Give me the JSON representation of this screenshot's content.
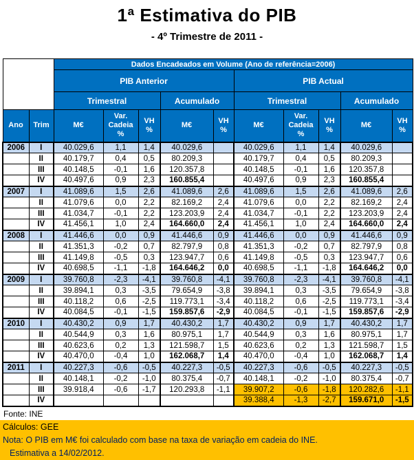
{
  "title": "1ª Estimativa do PIB",
  "subtitle": "- 4º Trimestre de 2011 -",
  "colors": {
    "header_blue": "#0070C0",
    "row_highlight_blue": "#C5D9F1",
    "estimate_highlight_orange": "#FFC000",
    "note_text_navy": "#002060"
  },
  "table": {
    "banner": "Dados Encadeados em Volume (Ano de referência=2006)",
    "groups": {
      "anterior": "PIB Anterior",
      "actual": "PIB Actual"
    },
    "subgroups": {
      "trimestral": "Trimestral",
      "acumulado": "Acumulado"
    },
    "columns": {
      "ano": "Ano",
      "trim": "Trim",
      "me": "M€",
      "var_cadeia": "Var. Cadeia %",
      "vh": "VH %"
    },
    "rows": [
      {
        "year": "2006",
        "quarter": "I",
        "ant": [
          "40.029,6",
          "1,1",
          "1,4",
          "40.029,6",
          ""
        ],
        "act": [
          "40.029,6",
          "1,1",
          "1,4",
          "40.029,6",
          ""
        ],
        "bold_acumulado": false,
        "orange_actual": false
      },
      {
        "year": "",
        "quarter": "II",
        "ant": [
          "40.179,7",
          "0,4",
          "0,5",
          "80.209,3",
          ""
        ],
        "act": [
          "40.179,7",
          "0,4",
          "0,5",
          "80.209,3",
          ""
        ],
        "bold_acumulado": false,
        "orange_actual": false
      },
      {
        "year": "",
        "quarter": "III",
        "ant": [
          "40.148,5",
          "-0,1",
          "1,6",
          "120.357,8",
          ""
        ],
        "act": [
          "40.148,5",
          "-0,1",
          "1,6",
          "120.357,8",
          ""
        ],
        "bold_acumulado": false,
        "orange_actual": false
      },
      {
        "year": "",
        "quarter": "IV",
        "ant": [
          "40.497,6",
          "0,9",
          "2,3",
          "160.855,4",
          ""
        ],
        "act": [
          "40.497,6",
          "0,9",
          "2,3",
          "160.855,4",
          ""
        ],
        "bold_acumulado": true,
        "orange_actual": false
      },
      {
        "year": "2007",
        "quarter": "I",
        "ant": [
          "41.089,6",
          "1,5",
          "2,6",
          "41.089,6",
          "2,6"
        ],
        "act": [
          "41.089,6",
          "1,5",
          "2,6",
          "41.089,6",
          "2,6"
        ],
        "bold_acumulado": false,
        "orange_actual": false
      },
      {
        "year": "",
        "quarter": "II",
        "ant": [
          "41.079,6",
          "0,0",
          "2,2",
          "82.169,2",
          "2,4"
        ],
        "act": [
          "41.079,6",
          "0,0",
          "2,2",
          "82.169,2",
          "2,4"
        ],
        "bold_acumulado": false,
        "orange_actual": false
      },
      {
        "year": "",
        "quarter": "III",
        "ant": [
          "41.034,7",
          "-0,1",
          "2,2",
          "123.203,9",
          "2,4"
        ],
        "act": [
          "41.034,7",
          "-0,1",
          "2,2",
          "123.203,9",
          "2,4"
        ],
        "bold_acumulado": false,
        "orange_actual": false
      },
      {
        "year": "",
        "quarter": "IV",
        "ant": [
          "41.456,1",
          "1,0",
          "2,4",
          "164.660,0",
          "2,4"
        ],
        "act": [
          "41.456,1",
          "1,0",
          "2,4",
          "164.660,0",
          "2,4"
        ],
        "bold_acumulado": true,
        "orange_actual": false
      },
      {
        "year": "2008",
        "quarter": "I",
        "ant": [
          "41.446,6",
          "0,0",
          "0,9",
          "41.446,6",
          "0,9"
        ],
        "act": [
          "41.446,6",
          "0,0",
          "0,9",
          "41.446,6",
          "0,9"
        ],
        "bold_acumulado": false,
        "orange_actual": false
      },
      {
        "year": "",
        "quarter": "II",
        "ant": [
          "41.351,3",
          "-0,2",
          "0,7",
          "82.797,9",
          "0,8"
        ],
        "act": [
          "41.351,3",
          "-0,2",
          "0,7",
          "82.797,9",
          "0,8"
        ],
        "bold_acumulado": false,
        "orange_actual": false
      },
      {
        "year": "",
        "quarter": "III",
        "ant": [
          "41.149,8",
          "-0,5",
          "0,3",
          "123.947,7",
          "0,6"
        ],
        "act": [
          "41.149,8",
          "-0,5",
          "0,3",
          "123.947,7",
          "0,6"
        ],
        "bold_acumulado": false,
        "orange_actual": false
      },
      {
        "year": "",
        "quarter": "IV",
        "ant": [
          "40.698,5",
          "-1,1",
          "-1,8",
          "164.646,2",
          "0,0"
        ],
        "act": [
          "40.698,5",
          "-1,1",
          "-1,8",
          "164.646,2",
          "0,0"
        ],
        "bold_acumulado": true,
        "orange_actual": false
      },
      {
        "year": "2009",
        "quarter": "I",
        "ant": [
          "39.760,8",
          "-2,3",
          "-4,1",
          "39.760,8",
          "-4,1"
        ],
        "act": [
          "39.760,8",
          "-2,3",
          "-4,1",
          "39.760,8",
          "-4,1"
        ],
        "bold_acumulado": false,
        "orange_actual": false
      },
      {
        "year": "",
        "quarter": "II",
        "ant": [
          "39.894,1",
          "0,3",
          "-3,5",
          "79.654,9",
          "-3,8"
        ],
        "act": [
          "39.894,1",
          "0,3",
          "-3,5",
          "79.654,9",
          "-3,8"
        ],
        "bold_acumulado": false,
        "orange_actual": false
      },
      {
        "year": "",
        "quarter": "III",
        "ant": [
          "40.118,2",
          "0,6",
          "-2,5",
          "119.773,1",
          "-3,4"
        ],
        "act": [
          "40.118,2",
          "0,6",
          "-2,5",
          "119.773,1",
          "-3,4"
        ],
        "bold_acumulado": false,
        "orange_actual": false
      },
      {
        "year": "",
        "quarter": "IV",
        "ant": [
          "40.084,5",
          "-0,1",
          "-1,5",
          "159.857,6",
          "-2,9"
        ],
        "act": [
          "40.084,5",
          "-0,1",
          "-1,5",
          "159.857,6",
          "-2,9"
        ],
        "bold_acumulado": true,
        "orange_actual": false
      },
      {
        "year": "2010",
        "quarter": "I",
        "ant": [
          "40.430,2",
          "0,9",
          "1,7",
          "40.430,2",
          "1,7"
        ],
        "act": [
          "40.430,2",
          "0,9",
          "1,7",
          "40.430,2",
          "1,7"
        ],
        "bold_acumulado": false,
        "orange_actual": false
      },
      {
        "year": "",
        "quarter": "II",
        "ant": [
          "40.544,9",
          "0,3",
          "1,6",
          "80.975,1",
          "1,7"
        ],
        "act": [
          "40.544,9",
          "0,3",
          "1,6",
          "80.975,1",
          "1,7"
        ],
        "bold_acumulado": false,
        "orange_actual": false
      },
      {
        "year": "",
        "quarter": "III",
        "ant": [
          "40.623,6",
          "0,2",
          "1,3",
          "121.598,7",
          "1,5"
        ],
        "act": [
          "40.623,6",
          "0,2",
          "1,3",
          "121.598,7",
          "1,5"
        ],
        "bold_acumulado": false,
        "orange_actual": false
      },
      {
        "year": "",
        "quarter": "IV",
        "ant": [
          "40.470,0",
          "-0,4",
          "1,0",
          "162.068,7",
          "1,4"
        ],
        "act": [
          "40.470,0",
          "-0,4",
          "1,0",
          "162.068,7",
          "1,4"
        ],
        "bold_acumulado": true,
        "orange_actual": false
      },
      {
        "year": "2011",
        "quarter": "I",
        "ant": [
          "40.227,3",
          "-0,6",
          "-0,5",
          "40.227,3",
          "-0,5"
        ],
        "act": [
          "40.227,3",
          "-0,6",
          "-0,5",
          "40.227,3",
          "-0,5"
        ],
        "bold_acumulado": false,
        "orange_actual": false
      },
      {
        "year": "",
        "quarter": "II",
        "ant": [
          "40.148,1",
          "-0,2",
          "-1,0",
          "80.375,4",
          "-0,7"
        ],
        "act": [
          "40.148,1",
          "-0,2",
          "-1,0",
          "80.375,4",
          "-0,7"
        ],
        "bold_acumulado": false,
        "orange_actual": false
      },
      {
        "year": "",
        "quarter": "III",
        "ant": [
          "39.918,4",
          "-0,6",
          "-1,7",
          "120.293,8",
          "-1,1"
        ],
        "act": [
          "39.907,2",
          "-0,6",
          "-1,8",
          "120.282,6",
          "-1,1"
        ],
        "bold_acumulado": false,
        "orange_actual": true
      },
      {
        "year": "",
        "quarter": "IV",
        "ant": [
          "",
          "",
          "",
          "",
          ""
        ],
        "act": [
          "39.388,4",
          "-1,3",
          "-2,7",
          "159.671,0",
          "-1,5"
        ],
        "bold_acumulado": true,
        "orange_actual": true
      }
    ]
  },
  "footer": {
    "fonte": "Fonte: INE",
    "calculos": "Cálculos: GEE",
    "nota": "Nota: O PIB em M€ foi calculado com base na taxa de variação em cadeia do INE.",
    "estimativa": "Estimativa a 14/02/2012."
  }
}
